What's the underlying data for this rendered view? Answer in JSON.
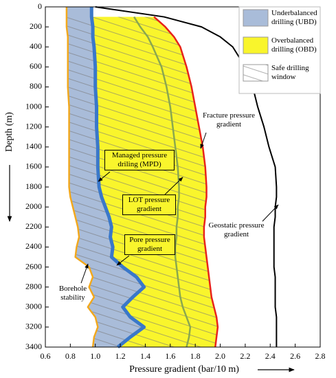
{
  "chart_data": {
    "type": "line",
    "xlabel": "Pressure gradient (bar/10 m)",
    "ylabel": "Depth (m)",
    "xlim": [
      0.6,
      2.8
    ],
    "xticks": [
      0.6,
      0.8,
      {
        "value": 1,
        "label": "1.0"
      },
      1.2,
      1.4,
      1.6,
      1.8,
      {
        "value": 2,
        "label": "2.0"
      },
      2.2,
      2.4,
      2.6,
      2.8
    ],
    "ylim": [
      0,
      3400
    ],
    "y_inverted": true,
    "yticks": [
      0,
      200,
      400,
      600,
      800,
      1000,
      1200,
      1400,
      1600,
      1800,
      2000,
      2200,
      2400,
      2600,
      2800,
      3000,
      3200,
      3400
    ],
    "y": [
      0,
      100,
      200,
      300,
      400,
      600,
      800,
      1000,
      1200,
      1400,
      1600,
      1800,
      1900,
      2000,
      2100,
      2200,
      2300,
      2400,
      2500,
      2600,
      2700,
      2800,
      2900,
      3000,
      3100,
      3200,
      3300,
      3400
    ],
    "series": [
      {
        "name": "Borehole stability",
        "color": "#f2a81d",
        "values": [
          0.77,
          0.77,
          0.77,
          0.78,
          0.78,
          0.78,
          0.78,
          0.79,
          0.79,
          0.79,
          0.79,
          0.79,
          0.8,
          0.82,
          0.84,
          0.86,
          0.87,
          0.85,
          0.84,
          0.95,
          0.98,
          0.95,
          0.99,
          0.94,
          1.0,
          1.02,
          0.99,
          0.98
        ]
      },
      {
        "name": "Pore pressure gradient",
        "color": "#3a78c9",
        "values": [
          0.97,
          0.97,
          0.98,
          0.98,
          0.99,
          1.0,
          1.0,
          1.01,
          1.01,
          1.02,
          1.02,
          1.03,
          1.05,
          1.08,
          1.11,
          1.13,
          1.12,
          1.14,
          1.13,
          1.22,
          1.33,
          1.39,
          1.3,
          1.22,
          1.28,
          1.39,
          1.28,
          1.18
        ]
      },
      {
        "name": "LOT pressure gradient",
        "color": "#8aa84e",
        "values": [
          null,
          1.31,
          1.36,
          1.42,
          1.46,
          1.53,
          1.57,
          1.6,
          1.62,
          1.64,
          1.66,
          1.67,
          1.67,
          1.66,
          1.66,
          1.65,
          1.65,
          1.64,
          1.64,
          1.65,
          1.66,
          1.67,
          1.68,
          1.7,
          1.73,
          1.76,
          1.75,
          1.73
        ]
      },
      {
        "name": "Fracture pressure gradient",
        "color": "#e8231b",
        "values": [
          null,
          1.47,
          1.56,
          1.63,
          1.68,
          1.73,
          1.77,
          1.8,
          1.83,
          1.86,
          1.88,
          1.89,
          1.89,
          1.88,
          1.88,
          1.87,
          1.87,
          1.88,
          1.89,
          1.9,
          1.91,
          1.92,
          1.93,
          1.95,
          1.97,
          1.98,
          1.97,
          1.96
        ]
      },
      {
        "name": "Geostatic pressure gradient",
        "color": "#000000",
        "values": [
          1.0,
          1.55,
          1.85,
          2.0,
          2.1,
          2.2,
          2.26,
          2.3,
          2.35,
          2.39,
          2.44,
          2.45,
          2.45,
          2.44,
          2.44,
          2.43,
          2.43,
          2.43,
          2.43,
          2.43,
          2.44,
          2.44,
          2.44,
          2.44,
          2.45,
          2.45,
          2.45,
          2.45
        ]
      }
    ],
    "regions": [
      {
        "name": "Underbalanced drilling (UBD)",
        "color": "#a9bcd9"
      },
      {
        "name": "Overbalanced drilling (OBD)",
        "color": "#f9f52c"
      },
      {
        "name": "Safe drilling window",
        "color": "#777777"
      }
    ],
    "annotations": [
      "Managed pressure driling (MPD)"
    ]
  }
}
